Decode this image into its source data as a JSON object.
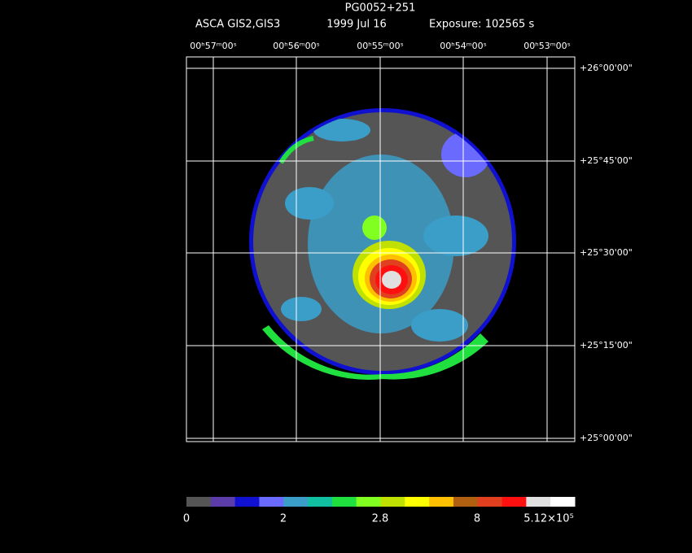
{
  "header": {
    "title": "PG0052+251",
    "instrument": "ASCA GIS2,GIS3",
    "date": "1999 Jul 16",
    "exposure": "Exposure: 102565 s"
  },
  "ra_labels": [
    "00ʰ57ᵐ00ˢ",
    "00ʰ56ᵐ00ˢ",
    "00ʰ55ᵐ00ˢ",
    "00ʰ54ᵐ00ˢ",
    "00ʰ53ᵐ00ˢ"
  ],
  "dec_labels": [
    "+26°00'00\"",
    "+25°45'00\"",
    "+25°30'00\"",
    "+25°15'00\"",
    "+25°00'00\""
  ],
  "colorbar": {
    "labels": [
      "0",
      "2",
      "2.8",
      "8",
      "5.12×10⁵"
    ]
  }
}
